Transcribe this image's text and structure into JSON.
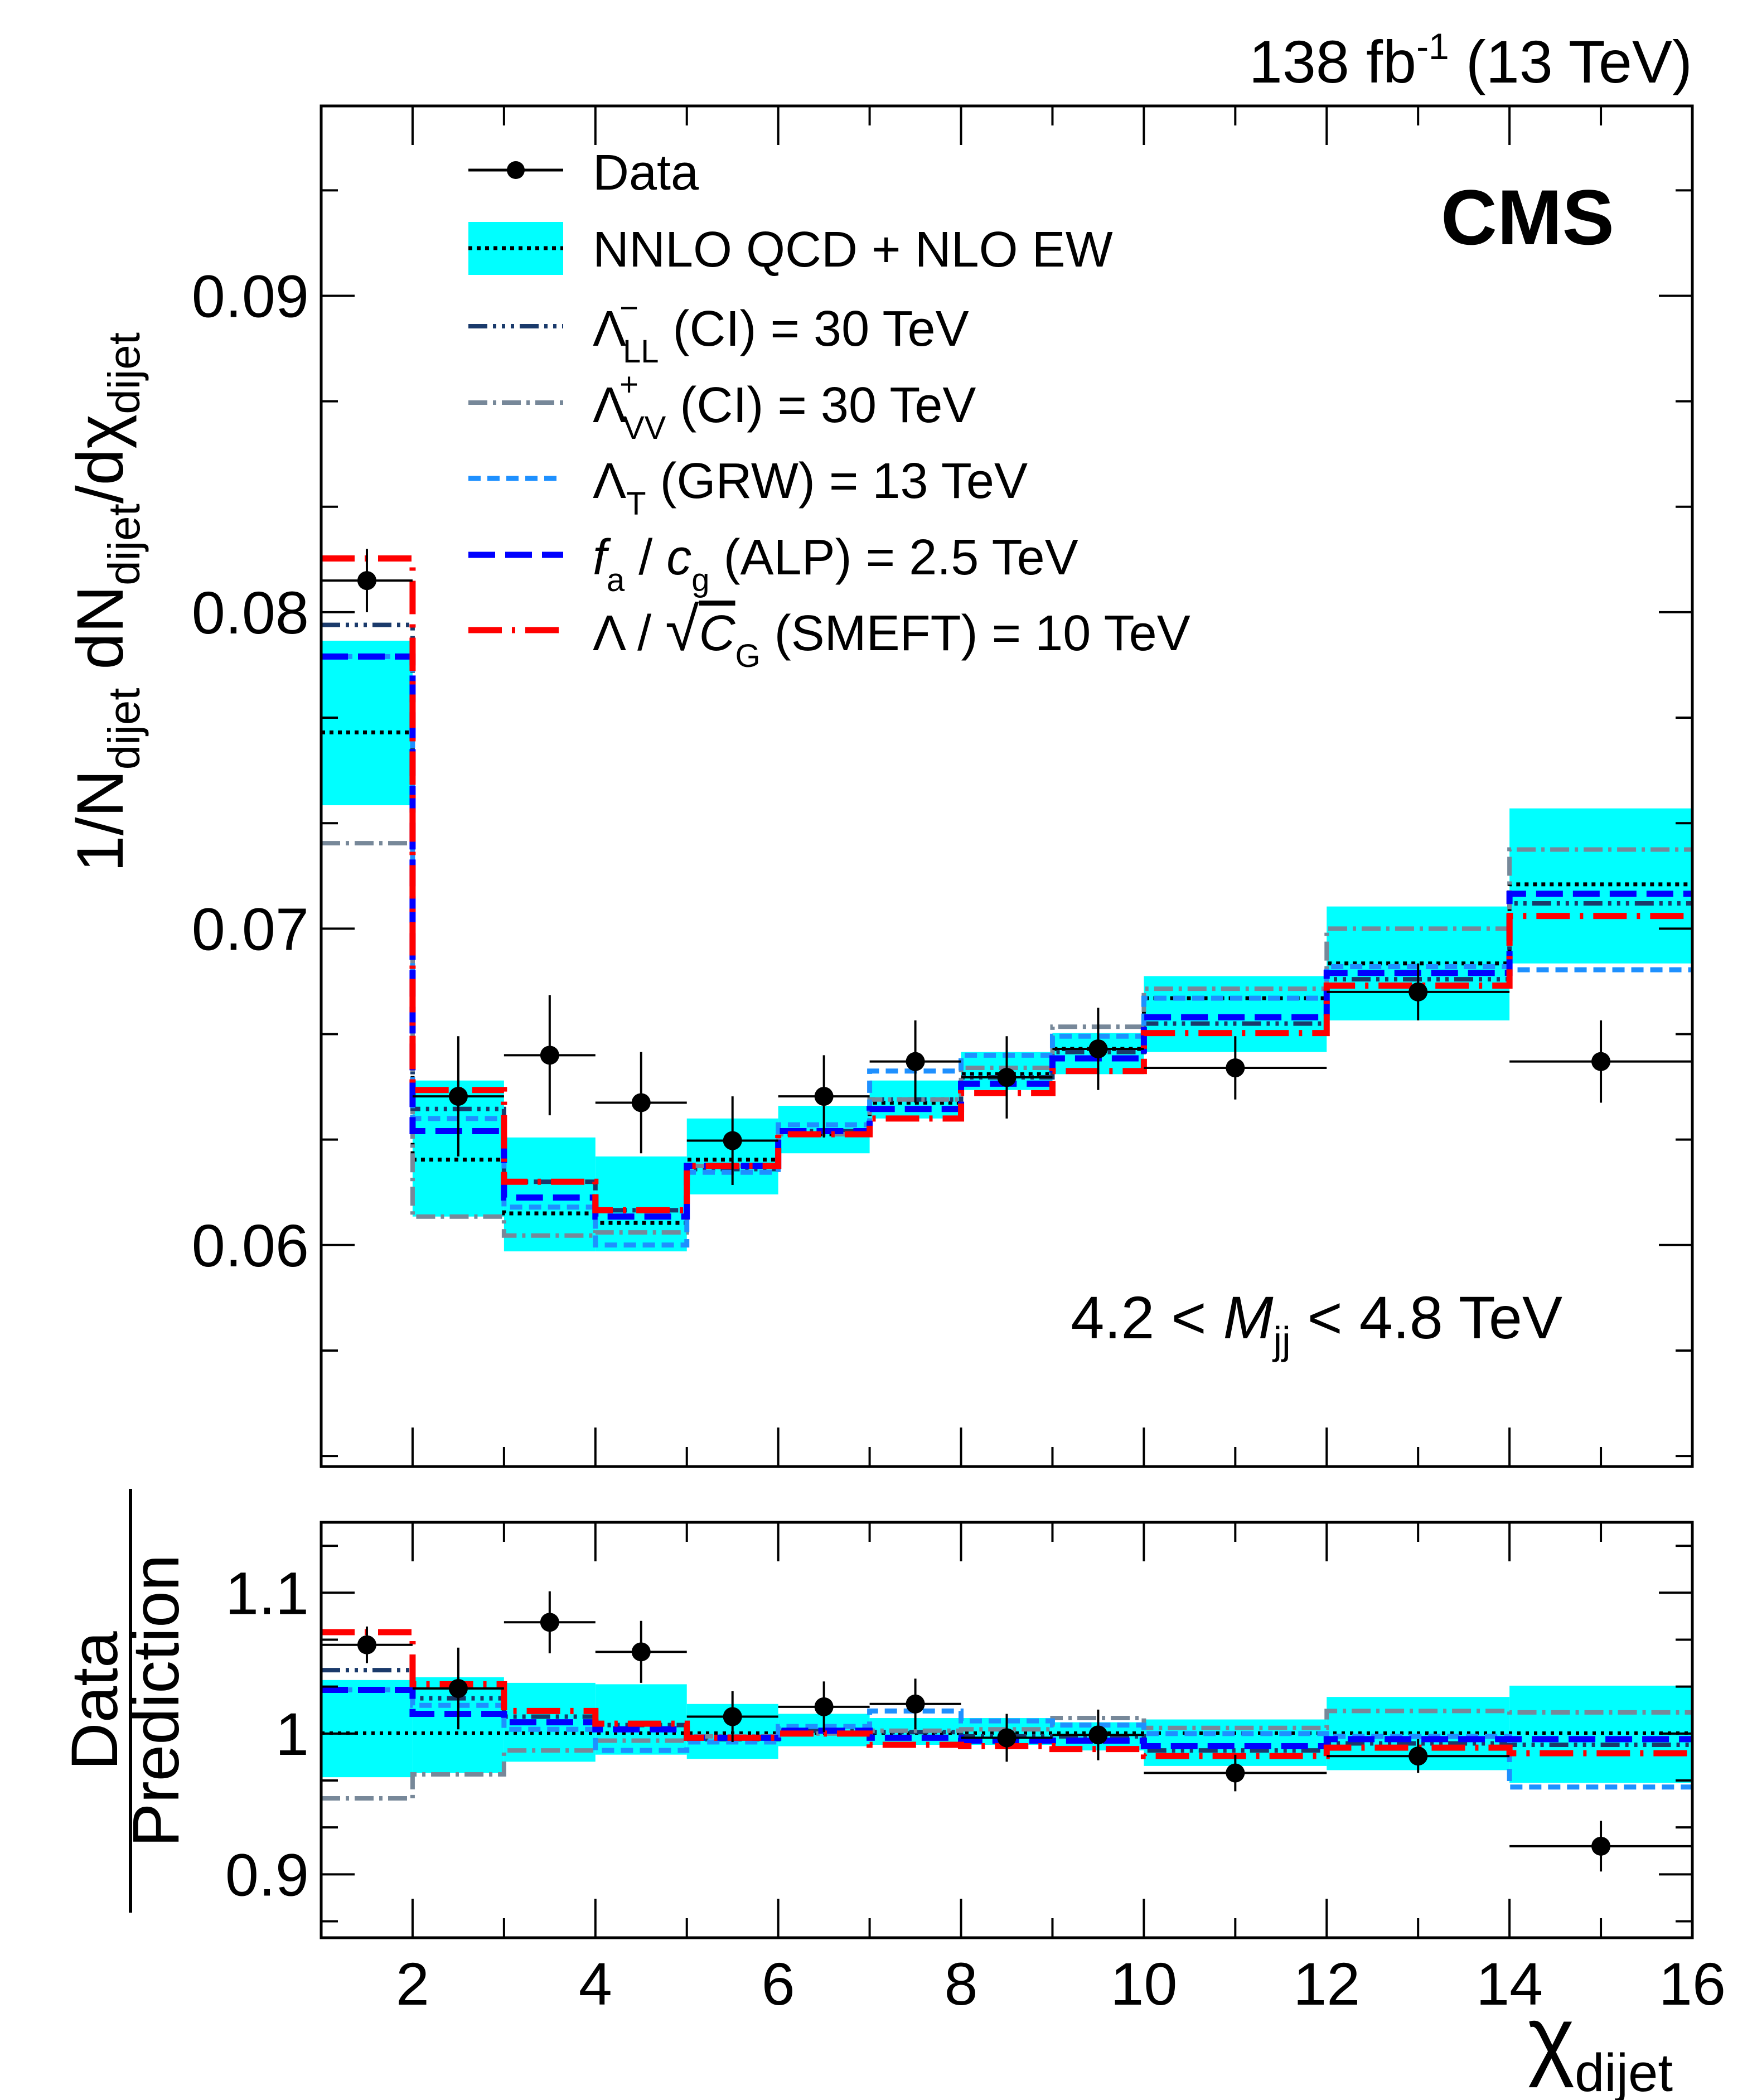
{
  "colors": {
    "band": "#00ffff",
    "ll": "#1a3a6b",
    "vv": "#778899",
    "grw": "#1e90ff",
    "alp": "#0000ff",
    "smeft": "#ff0000",
    "data": "#000000"
  },
  "header": {
    "lumi_value": "138 fb",
    "lumi_exp": "-1",
    "energy": "(13 TeV)",
    "experiment": "CMS"
  },
  "annotation": {
    "pre": "4.2 < ",
    "var": "M",
    "sub": "jj",
    "post": " < 4.8 TeV"
  },
  "legend": {
    "data": "Data",
    "qcd": "NNLO QCD + NLO EW",
    "ll": {
      "sym": "Λ",
      "sup": "−",
      "sub": "LL",
      "rest": " (CI) = 30 TeV"
    },
    "vv": {
      "sym": "Λ",
      "sup": "+",
      "sub": "VV",
      "rest": " (CI) = 30 TeV"
    },
    "grw": {
      "sym": "Λ",
      "sub": "T",
      "rest": " (GRW) = 13 TeV"
    },
    "alp": {
      "f": "f",
      "fsub": "a",
      "slash": " / ",
      "c": "c",
      "csub": "g",
      "rest": " (ALP) = 2.5 TeV"
    },
    "smeft": {
      "sym": "Λ / ",
      "C": "C",
      "Csub": "G",
      "rest": " (SMEFT) = 10 TeV"
    }
  },
  "chart_data": [
    {
      "type": "line",
      "panel": "main",
      "ylabel": "1/N_dijet dN_dijet/dχ_dijet",
      "xlim": [
        1,
        16
      ],
      "ylim": [
        0.053,
        0.096
      ],
      "yticks": [
        "0.06",
        "0.07",
        "0.08",
        "0.09"
      ],
      "ytick_values": [
        0.06,
        0.07,
        0.08,
        0.09
      ],
      "bin_edges": [
        1,
        2,
        3,
        4,
        5,
        6,
        7,
        8,
        9,
        10,
        12,
        14,
        16
      ],
      "data": {
        "name": "Data",
        "x": [
          1.5,
          2.5,
          3.5,
          4.5,
          5.5,
          6.5,
          7.5,
          8.5,
          9.5,
          11,
          13,
          15
        ],
        "y": [
          0.081,
          0.0647,
          0.066,
          0.0645,
          0.0633,
          0.0647,
          0.0658,
          0.0653,
          0.0662,
          0.0656,
          0.068,
          0.0658
        ],
        "yerr": [
          0.001,
          0.0019,
          0.0019,
          0.0016,
          0.0014,
          0.0013,
          0.0013,
          0.0013,
          0.0013,
          0.001,
          0.0009,
          0.0013
        ]
      },
      "band": {
        "name": "NNLO QCD + NLO EW",
        "center": [
          0.0762,
          0.0627,
          0.061,
          0.0607,
          0.0627,
          0.0635,
          0.0645,
          0.0654,
          0.0662,
          0.0678,
          0.0689,
          0.0714
        ],
        "low": [
          0.0739,
          0.0609,
          0.0598,
          0.0598,
          0.0616,
          0.0629,
          0.064,
          0.0649,
          0.0654,
          0.0661,
          0.0671,
          0.0689
        ],
        "high": [
          0.0791,
          0.0652,
          0.0634,
          0.0628,
          0.064,
          0.0644,
          0.0652,
          0.0661,
          0.0667,
          0.0685,
          0.0707,
          0.0738
        ]
      },
      "series": [
        {
          "name": "Λ_LL^- (CI) = 30 TeV",
          "key": "ll",
          "values": [
            0.0796,
            0.0643,
            0.062,
            0.0611,
            0.0624,
            0.0636,
            0.0646,
            0.0653,
            0.0661,
            0.067,
            0.0684,
            0.0708
          ]
        },
        {
          "name": "Λ_VV^+ (CI) = 30 TeV",
          "key": "vv",
          "values": [
            0.0727,
            0.0609,
            0.0603,
            0.0604,
            0.0625,
            0.0635,
            0.0646,
            0.0656,
            0.0669,
            0.0681,
            0.07,
            0.0725
          ]
        },
        {
          "name": "Λ_T (GRW) = 13 TeV",
          "key": "grw",
          "values": [
            0.0786,
            0.064,
            0.0612,
            0.06,
            0.0623,
            0.0638,
            0.0655,
            0.066,
            0.0666,
            0.0678,
            0.0688,
            0.0687
          ]
        },
        {
          "name": "f_a / c_g (ALP) = 2.5 TeV",
          "key": "alp",
          "values": [
            0.0786,
            0.0636,
            0.0615,
            0.0609,
            0.0625,
            0.0636,
            0.0643,
            0.0651,
            0.0659,
            0.0672,
            0.0686,
            0.0711
          ]
        },
        {
          "name": "Λ / √C_G (SMEFT) = 10 TeV",
          "key": "smeft",
          "values": [
            0.0817,
            0.0649,
            0.062,
            0.0611,
            0.0625,
            0.0635,
            0.064,
            0.0648,
            0.0655,
            0.0667,
            0.0682,
            0.0704
          ]
        }
      ]
    },
    {
      "type": "line",
      "panel": "ratio",
      "ylabel": "Data / Prediction",
      "xlabel": "χ_dijet",
      "xlim": [
        1,
        16
      ],
      "ylim": [
        0.855,
        1.15
      ],
      "yticks": [
        "0.9",
        "1",
        "1.1"
      ],
      "ytick_values": [
        0.9,
        1.0,
        1.1
      ],
      "xticks": [
        "2",
        "4",
        "6",
        "8",
        "10",
        "12",
        "14",
        "16"
      ],
      "xtick_values": [
        2,
        4,
        6,
        8,
        10,
        12,
        14,
        16
      ],
      "bin_edges": [
        1,
        2,
        3,
        4,
        5,
        6,
        7,
        8,
        9,
        10,
        12,
        14,
        16
      ],
      "data": {
        "x": [
          1.5,
          2.5,
          3.5,
          4.5,
          5.5,
          6.5,
          7.5,
          8.5,
          9.5,
          11,
          13,
          15
        ],
        "y": [
          1.063,
          1.032,
          1.079,
          1.058,
          1.012,
          1.019,
          1.021,
          0.997,
          0.999,
          0.972,
          0.984,
          0.92
        ],
        "yerr": [
          0.013,
          0.029,
          0.022,
          0.022,
          0.018,
          0.018,
          0.018,
          0.017,
          0.018,
          0.013,
          0.012,
          0.018
        ]
      },
      "band": {
        "low": [
          0.969,
          0.972,
          0.98,
          0.985,
          0.982,
          0.991,
          0.992,
          0.992,
          0.988,
          0.977,
          0.974,
          0.965
        ],
        "high": [
          1.038,
          1.04,
          1.036,
          1.035,
          1.021,
          1.014,
          1.011,
          1.011,
          1.008,
          1.01,
          1.026,
          1.034
        ]
      },
      "series": [
        {
          "key": "ll",
          "values": [
            1.045,
            1.025,
            1.012,
            1.006,
            0.996,
            1.002,
            1.001,
            0.998,
            0.998,
            0.988,
            0.993,
            0.992
          ]
        },
        {
          "key": "vv",
          "values": [
            0.954,
            0.971,
            0.988,
            0.995,
            0.998,
            1.0,
            1.002,
            1.003,
            1.011,
            1.004,
            1.016,
            1.015
          ]
        },
        {
          "key": "grw",
          "values": [
            1.031,
            1.02,
            1.003,
            0.988,
            0.994,
            1.005,
            1.016,
            1.009,
            1.006,
            1.0,
            0.998,
            0.962
          ]
        },
        {
          "key": "alp",
          "values": [
            1.031,
            1.014,
            1.008,
            1.003,
            0.997,
            1.002,
            0.997,
            0.995,
            0.995,
            0.991,
            0.996,
            0.996
          ]
        },
        {
          "key": "smeft",
          "values": [
            1.072,
            1.035,
            1.016,
            1.007,
            0.997,
            1.0,
            0.992,
            0.991,
            0.989,
            0.984,
            0.99,
            0.986
          ]
        }
      ]
    }
  ]
}
